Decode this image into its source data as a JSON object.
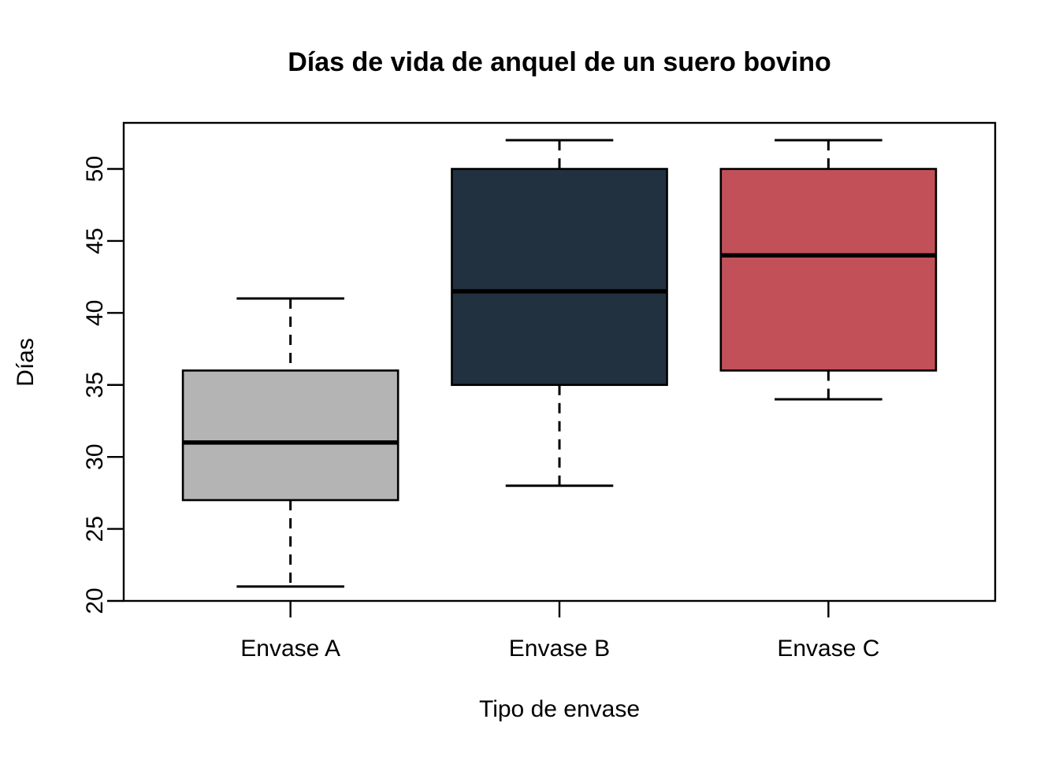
{
  "chart_data": {
    "type": "boxplot",
    "title": "Días de vida de anquel de un suero bovino",
    "xlabel": "Tipo de envase",
    "ylabel": "Días",
    "ylim": [
      20,
      53.2
    ],
    "yticks": [
      20,
      25,
      30,
      35,
      40,
      45,
      50
    ],
    "grid": false,
    "legend": "none",
    "orientation": "vertical",
    "categories": [
      "Envase A",
      "Envase B",
      "Envase C"
    ],
    "series": [
      {
        "name": "Envase A",
        "whisker_low": 21,
        "q1": 27,
        "median": 31,
        "q3": 36,
        "whisker_high": 41,
        "fill": "#B4B4B4"
      },
      {
        "name": "Envase B",
        "whisker_low": 28,
        "q1": 35,
        "median": 41.5,
        "q3": 50,
        "whisker_high": 52,
        "fill": "#22313F"
      },
      {
        "name": "Envase C",
        "whisker_low": 34,
        "q1": 36,
        "median": 44,
        "q3": 50,
        "whisker_high": 52,
        "fill": "#C25058"
      }
    ],
    "colors": {
      "box_stroke": "#000000",
      "median_line": "#000000",
      "whisker": "#000000",
      "axis": "#000000",
      "background": "#FFFFFF"
    },
    "whisker_style": "dashed"
  }
}
